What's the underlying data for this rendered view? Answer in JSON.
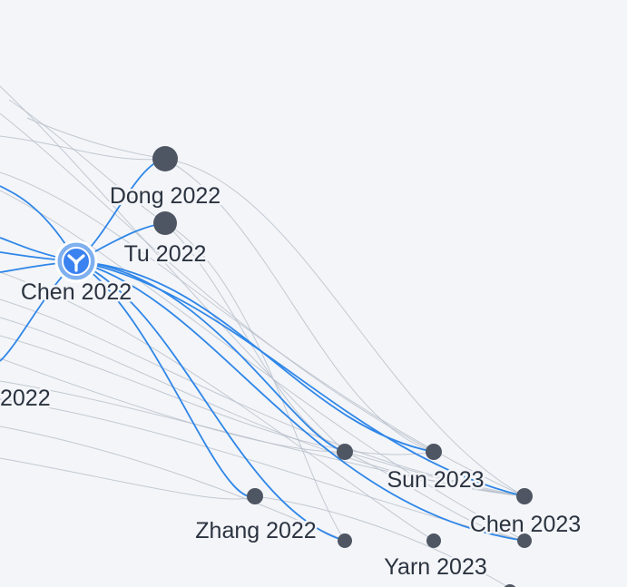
{
  "graph": {
    "background": "#f3f5f8",
    "colors": {
      "highlight_edge": "#2f86e8",
      "faint_edge": "#b6bec9",
      "node": "#4f5663",
      "selected_ring": "#7fb0ef",
      "selected_fill": "#3a82f0"
    },
    "selected_node": {
      "label": "Chen 2022",
      "icon": "branch-icon"
    },
    "nodes": [
      {
        "id": "dong2022",
        "label": "Dong 2022"
      },
      {
        "id": "tu2022",
        "label": "Tu 2022"
      },
      {
        "id": "chen2022",
        "label": "Chen 2022"
      },
      {
        "id": "left2022",
        "label": "2022"
      },
      {
        "id": "sun2023",
        "label": "Sun 2023"
      },
      {
        "id": "zhang2022",
        "label": "Zhang 2022"
      },
      {
        "id": "chen2023",
        "label": "Chen 2023"
      },
      {
        "id": "yarn2023",
        "label": "Yarn 2023"
      }
    ]
  }
}
